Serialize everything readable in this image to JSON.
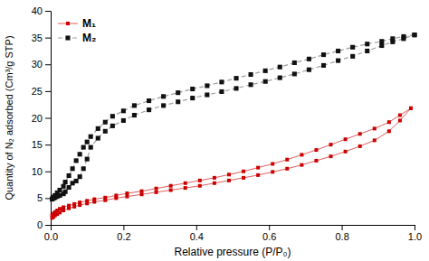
{
  "chart_data": {
    "type": "line",
    "xlabel": "Relative pressure (P/P₀)",
    "ylabel": "Quantity of N₂ adsorbed (Cm³/g STP)",
    "xlim": [
      0,
      1.0
    ],
    "ylim": [
      0,
      40
    ],
    "xticks": [
      {
        "value": 0.0,
        "label": "0.0"
      },
      0.2,
      0.4,
      0.6,
      0.8,
      {
        "value": 1.0,
        "label": "1.0"
      }
    ],
    "yticks": [
      0,
      5,
      10,
      15,
      20,
      25,
      30,
      35,
      40
    ],
    "grid": false,
    "legend": "upper left",
    "series": [
      {
        "name": "M₁",
        "color": "#cc0000",
        "marker": "square",
        "line_style": "solid",
        "x": [
          0.004,
          0.008,
          0.012,
          0.018,
          0.025,
          0.035,
          0.05,
          0.065,
          0.08,
          0.1,
          0.12,
          0.15,
          0.18,
          0.21,
          0.25,
          0.29,
          0.33,
          0.37,
          0.41,
          0.45,
          0.49,
          0.53,
          0.57,
          0.61,
          0.65,
          0.69,
          0.73,
          0.77,
          0.81,
          0.85,
          0.89,
          0.93,
          0.96,
          0.99
        ],
        "values": [
          1.3,
          1.5,
          1.8,
          2.0,
          2.3,
          2.7,
          3.1,
          3.4,
          3.7,
          4.0,
          4.3,
          4.6,
          5.0,
          5.3,
          5.7,
          6.1,
          6.5,
          6.9,
          7.3,
          7.8,
          8.3,
          8.8,
          9.3,
          9.9,
          10.5,
          11.2,
          12.0,
          12.8,
          13.7,
          14.7,
          15.8,
          17.5,
          19.5,
          21.8
        ]
      },
      {
        "color": "#cc0000",
        "marker": "square",
        "line_style": "solid",
        "x": [
          0.99,
          0.96,
          0.93,
          0.89,
          0.85,
          0.81,
          0.77,
          0.73,
          0.69,
          0.65,
          0.61,
          0.57,
          0.53,
          0.49,
          0.45,
          0.41,
          0.37,
          0.33,
          0.29,
          0.25,
          0.21,
          0.18,
          0.15,
          0.12,
          0.1,
          0.08,
          0.065,
          0.05,
          0.035,
          0.025,
          0.018,
          0.012,
          0.008,
          0.004
        ],
        "values": [
          21.8,
          20.5,
          19.2,
          18.0,
          17.0,
          16.0,
          15.0,
          14.0,
          13.1,
          12.2,
          11.4,
          10.7,
          10.0,
          9.4,
          8.8,
          8.3,
          7.8,
          7.3,
          6.8,
          6.3,
          5.9,
          5.5,
          5.1,
          4.8,
          4.5,
          4.2,
          3.9,
          3.6,
          3.3,
          3.0,
          2.7,
          2.4,
          2.1,
          1.8
        ]
      },
      {
        "name": "M₂",
        "color": "#111111",
        "marker": "square",
        "line_style": "dashed",
        "x": [
          0.004,
          0.008,
          0.012,
          0.018,
          0.025,
          0.035,
          0.04,
          0.05,
          0.06,
          0.07,
          0.08,
          0.09,
          0.1,
          0.11,
          0.13,
          0.15,
          0.17,
          0.2,
          0.23,
          0.27,
          0.31,
          0.35,
          0.39,
          0.43,
          0.47,
          0.51,
          0.55,
          0.59,
          0.63,
          0.67,
          0.71,
          0.75,
          0.79,
          0.83,
          0.87,
          0.91,
          0.94,
          0.97,
          1.0
        ],
        "values": [
          4.8,
          5.0,
          5.1,
          5.3,
          5.5,
          5.8,
          6.2,
          7.0,
          7.8,
          8.2,
          9.0,
          10.5,
          12.3,
          14.5,
          16.2,
          17.5,
          18.5,
          19.5,
          20.5,
          21.5,
          22.3,
          23.0,
          23.7,
          24.3,
          24.9,
          25.5,
          26.2,
          26.8,
          27.5,
          28.2,
          29.0,
          29.8,
          30.7,
          31.5,
          32.5,
          33.5,
          34.2,
          34.8,
          35.5
        ]
      },
      {
        "color": "#111111",
        "marker": "square",
        "line_style": "dashed",
        "x": [
          1.0,
          0.97,
          0.94,
          0.91,
          0.87,
          0.83,
          0.79,
          0.75,
          0.71,
          0.67,
          0.63,
          0.59,
          0.55,
          0.51,
          0.47,
          0.43,
          0.39,
          0.35,
          0.31,
          0.27,
          0.23,
          0.2,
          0.17,
          0.15,
          0.13,
          0.11,
          0.1,
          0.09,
          0.08,
          0.07,
          0.06,
          0.05,
          0.04,
          0.035,
          0.025,
          0.018,
          0.012,
          0.008,
          0.004
        ],
        "values": [
          35.5,
          35.2,
          34.8,
          34.3,
          33.8,
          33.2,
          32.5,
          31.8,
          31.0,
          30.3,
          29.5,
          28.8,
          28.1,
          27.4,
          26.7,
          26.0,
          25.4,
          24.7,
          24.0,
          23.2,
          22.3,
          21.3,
          20.3,
          19.2,
          18.0,
          16.5,
          15.5,
          14.5,
          13.2,
          12.0,
          10.5,
          9.2,
          8.0,
          7.2,
          6.5,
          6.0,
          5.5,
          5.2,
          4.9
        ]
      }
    ]
  }
}
